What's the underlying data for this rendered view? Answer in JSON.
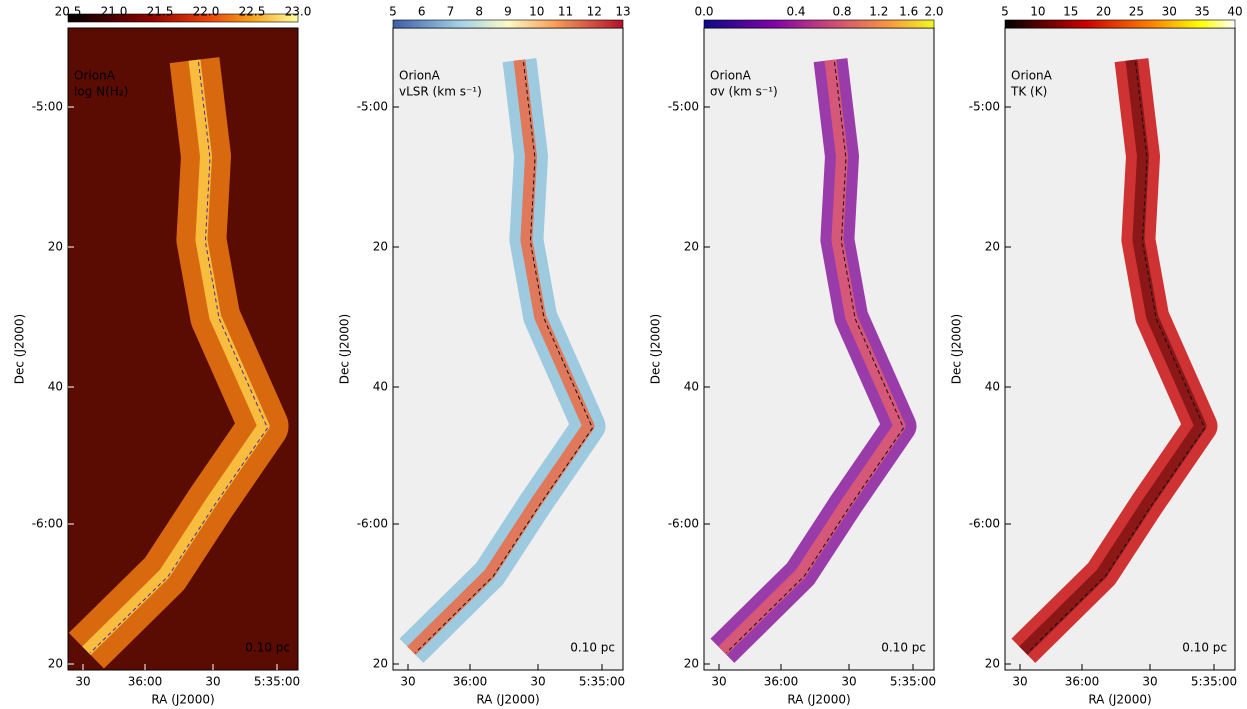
{
  "figure": {
    "axes": {
      "ylabel": "Dec (J2000)",
      "xlabel": "RA (J2000)",
      "dec_ticks": [
        "-5:00",
        "20",
        "40",
        "-6:00",
        "20"
      ],
      "ra_ticks": [
        "30",
        "36:00",
        "30",
        "5:35:00"
      ],
      "scale_bar": "0.10 pc"
    },
    "panels": [
      {
        "name": "OrionA",
        "quantity": "log N(H₂)",
        "colorbar_ticks": [
          "20.5",
          "21.0",
          "21.5",
          "22.0",
          "22.5",
          "23.0"
        ]
      },
      {
        "name": "OrionA",
        "quantity": "vLSR (km s⁻¹)",
        "colorbar_ticks": [
          "5",
          "6",
          "7",
          "8",
          "9",
          "10",
          "11",
          "12",
          "13"
        ]
      },
      {
        "name": "OrionA",
        "quantity": "σv (km s⁻¹)",
        "colorbar_ticks": [
          "0.0",
          "0.4",
          "0.8",
          "1.2",
          "1.6",
          "2.0"
        ]
      },
      {
        "name": "OrionA",
        "quantity": "TK (K)",
        "colorbar_ticks": [
          "5",
          "10",
          "15",
          "20",
          "25",
          "30",
          "35",
          "40"
        ]
      }
    ]
  }
}
